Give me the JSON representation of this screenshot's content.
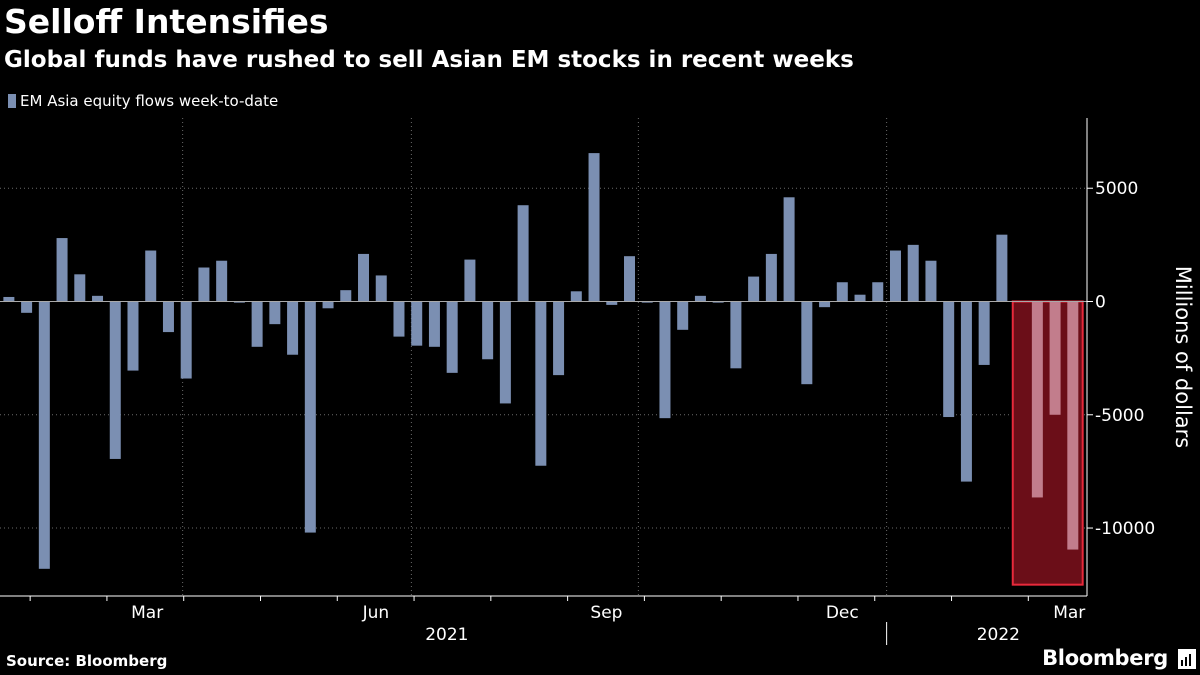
{
  "title": "Selloff Intensifies",
  "subtitle": "Global funds have rushed to sell Asian EM stocks in recent weeks",
  "source": "Source: Bloomberg",
  "brand": "Bloomberg",
  "colors": {
    "background": "#000000",
    "bar": "#7b8fb2",
    "highlight_fill": "#6b0e18",
    "highlight_stroke": "#e8293b",
    "highlight_bar": "#c27d8c",
    "zero_line": "#aaaaaa",
    "grid": "#6a6a6a"
  },
  "chart_data": {
    "type": "bar",
    "title": "Selloff Intensifies",
    "subtitle": "Global funds have rushed to sell Asian EM stocks in recent weeks",
    "legend": [
      "EM Asia equity flows week-to-date"
    ],
    "legend_position": "top-left",
    "ylabel": "Millions of dollars",
    "xlabel": "",
    "ylim": [
      -13000,
      8100
    ],
    "yticks": [
      5000,
      0,
      -5000,
      -10000
    ],
    "ytick_labels": [
      "5000",
      "0",
      "-5000",
      "-10000"
    ],
    "xlim": [
      0,
      61.3
    ],
    "xticks": [
      {
        "label": "Mar",
        "week": 8.3
      },
      {
        "label": "Jun",
        "week": 21.2
      },
      {
        "label": "Sep",
        "week": 34.2
      },
      {
        "label": "Dec",
        "week": 47.5
      },
      {
        "label": "Mar",
        "week": 60.3
      }
    ],
    "year_labels": [
      {
        "label": "2021",
        "week": 25.2
      },
      {
        "label": "2022",
        "week": 56.3
      }
    ],
    "grid_vertical_weeks": [
      10.3,
      23.2,
      36.0,
      50.0
    ],
    "year_divider_week": 50.0,
    "series": [
      {
        "name": "EM Asia equity flows week-to-date",
        "values": [
          200,
          -500,
          -11800,
          2800,
          1200,
          250,
          -6950,
          -3050,
          2250,
          -1350,
          -3400,
          1500,
          1800,
          -50,
          -2000,
          -1000,
          -2350,
          -10200,
          -300,
          500,
          2100,
          1150,
          -1550,
          -1950,
          -2000,
          -3150,
          1850,
          -2550,
          -4500,
          4250,
          -7250,
          -3250,
          450,
          6550,
          -150,
          2000,
          -50,
          -5150,
          -1250,
          250,
          -50,
          -2950,
          1100,
          2100,
          4600,
          -3650,
          -250,
          850,
          300,
          850,
          2250,
          2500,
          1800,
          -5100,
          -7950,
          -2800,
          2950,
          0,
          -8650,
          -5000,
          -10950
        ]
      }
    ],
    "highlight": {
      "from_week": 57,
      "to_week": 61,
      "ymin": -12500,
      "ymax": 0,
      "label": "recent weeks"
    }
  }
}
